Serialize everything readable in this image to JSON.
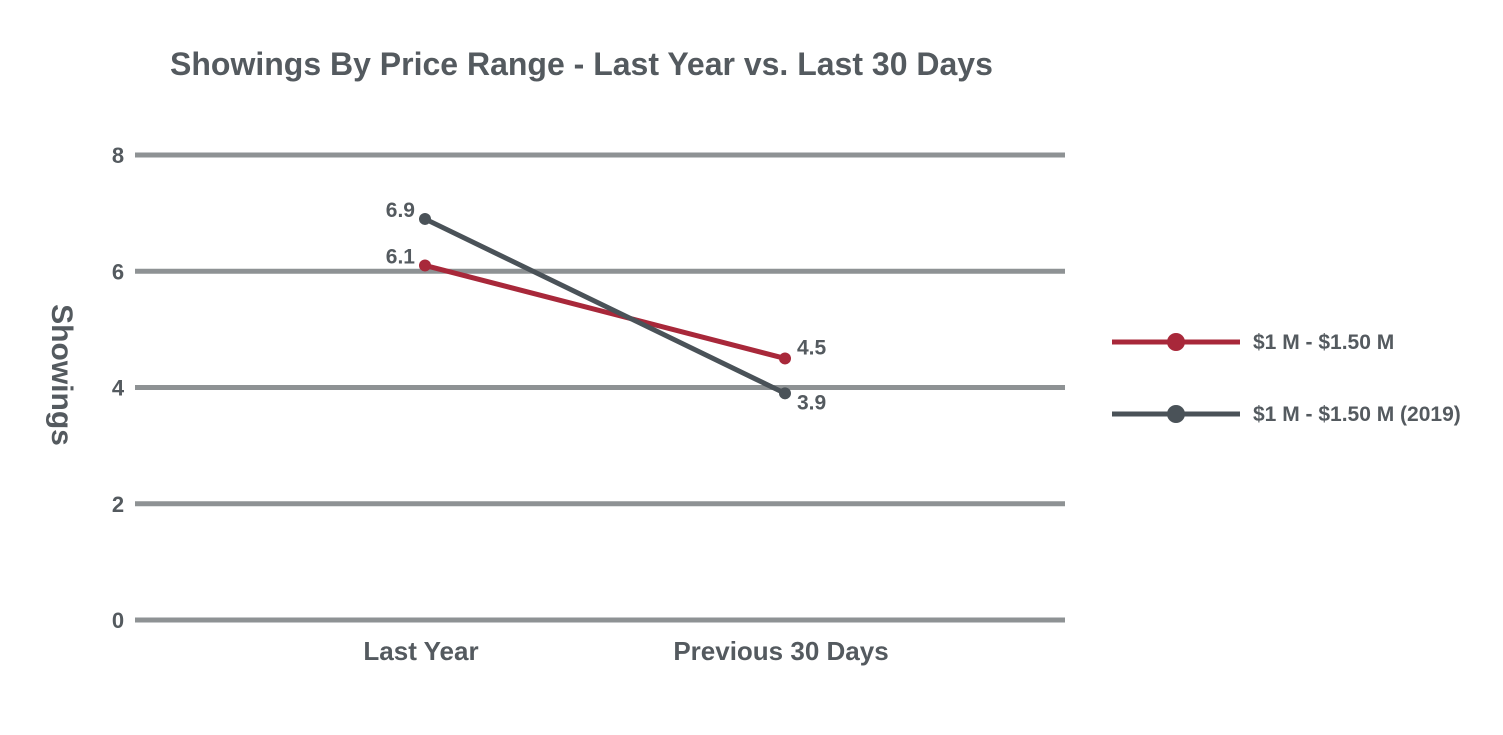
{
  "chart_data": {
    "type": "line",
    "title": "Showings By Price Range - Last Year vs. Last 30 Days",
    "xlabel": "",
    "ylabel": "Showings",
    "categories": [
      "Last Year",
      "Previous 30 Days"
    ],
    "yticks": [
      "0",
      "2",
      "4",
      "6",
      "8"
    ],
    "ylim": [
      0,
      8
    ],
    "grid": true,
    "legend_position": "right",
    "series": [
      {
        "name": "$1 M - $1.50 M",
        "values": [
          6.1,
          4.5
        ],
        "labels": [
          "6.1",
          "4.5"
        ],
        "color": "#a8283a"
      },
      {
        "name": "$1 M - $1.50 M (2019)",
        "values": [
          6.9,
          3.9
        ],
        "labels": [
          "6.9",
          "3.9"
        ],
        "color": "#4a5258"
      }
    ]
  },
  "colors": {
    "text": "#545a5f",
    "grid": "#8e9294"
  }
}
